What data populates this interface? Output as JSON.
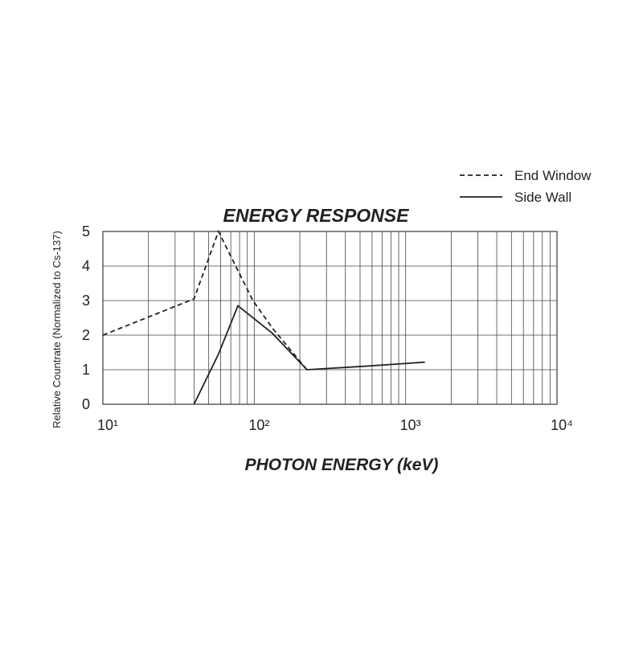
{
  "chart_data": {
    "type": "line",
    "title": "ENERGY RESPONSE",
    "x_label": "PHOTON ENERGY (keV)",
    "y_label": "Relative Countrate (Normalized to Cs-137)",
    "log_x": true,
    "xlim": [
      10,
      10000
    ],
    "xticks": [
      {
        "value": 10,
        "label": "10¹"
      },
      {
        "value": 100,
        "label": "10²"
      },
      {
        "value": 1000,
        "label": "10³"
      },
      {
        "value": 10000,
        "label": "10⁴"
      }
    ],
    "ylim": [
      0,
      5
    ],
    "yticks": [
      0,
      1,
      2,
      3,
      4,
      5
    ],
    "grid": true,
    "legend": "top-right",
    "series": [
      {
        "name": "End Window",
        "color": "#222222",
        "dash": true,
        "x": [
          10,
          40,
          58,
          98,
          132,
          223
        ],
        "values": [
          2.0,
          3.05,
          5.0,
          3.0,
          2.2,
          1.0
        ]
      },
      {
        "name": "Side Wall",
        "color": "#222222",
        "dash": false,
        "x": [
          40,
          58,
          78,
          132,
          223,
          537,
          1000,
          1340
        ],
        "values": [
          0,
          1.45,
          2.85,
          2.05,
          1.0,
          1.1,
          1.18,
          1.22
        ]
      }
    ]
  }
}
